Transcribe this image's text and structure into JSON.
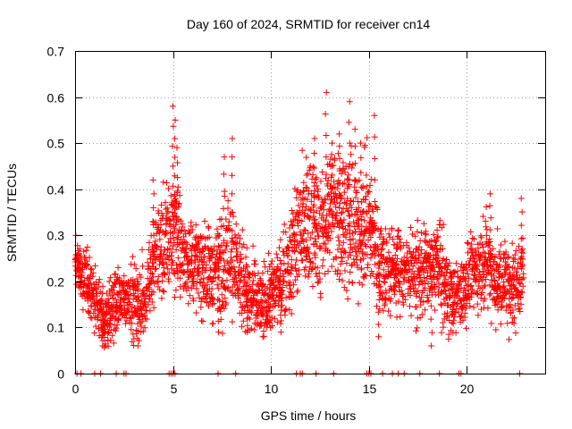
{
  "chart_data": {
    "type": "scatter",
    "title": "Day 160 of 2024, SRMTID for receiver cn14",
    "xlabel": "GPS time / hours",
    "ylabel": "SRMTID / TECUs",
    "xlim": [
      0,
      24
    ],
    "ylim": [
      0,
      0.7
    ],
    "x_ticks": [
      0,
      5,
      10,
      15,
      20
    ],
    "x_tick_labels": [
      "0",
      "5",
      "10",
      "15",
      "20"
    ],
    "y_ticks": [
      0,
      0.1,
      0.2,
      0.3,
      0.4,
      0.5,
      0.6,
      0.7
    ],
    "y_tick_labels": [
      "0",
      "0.1",
      "0.2",
      "0.3",
      "0.4",
      "0.5",
      "0.6",
      "0.7"
    ],
    "grid": "dotted",
    "marker": "+",
    "marker_color": "#ff0000",
    "envelope": {
      "x": [
        0,
        0.5,
        1.0,
        1.5,
        2.0,
        2.5,
        3.0,
        3.5,
        4.0,
        4.5,
        5.0,
        5.5,
        6.0,
        6.5,
        7.0,
        7.5,
        8.0,
        8.5,
        9.0,
        9.5,
        10.0,
        10.5,
        11.0,
        11.5,
        12.0,
        12.5,
        13.0,
        13.5,
        14.0,
        14.5,
        15.0,
        15.5,
        16.0,
        16.5,
        17.0,
        17.5,
        18.0,
        18.5,
        19.0,
        19.5,
        20.0,
        20.5,
        21.0,
        21.5,
        22.0,
        22.5,
        22.9
      ],
      "y": [
        0.24,
        0.2,
        0.16,
        0.12,
        0.15,
        0.17,
        0.16,
        0.15,
        0.24,
        0.28,
        0.32,
        0.26,
        0.24,
        0.22,
        0.22,
        0.24,
        0.27,
        0.2,
        0.16,
        0.15,
        0.17,
        0.2,
        0.26,
        0.31,
        0.33,
        0.3,
        0.35,
        0.36,
        0.32,
        0.3,
        0.34,
        0.24,
        0.22,
        0.23,
        0.22,
        0.21,
        0.23,
        0.24,
        0.18,
        0.17,
        0.2,
        0.22,
        0.25,
        0.21,
        0.2,
        0.19,
        0.21
      ],
      "spread": [
        0.05,
        0.05,
        0.05,
        0.05,
        0.05,
        0.05,
        0.06,
        0.07,
        0.07,
        0.09,
        0.1,
        0.08,
        0.07,
        0.07,
        0.08,
        0.09,
        0.1,
        0.08,
        0.07,
        0.06,
        0.06,
        0.07,
        0.09,
        0.11,
        0.11,
        0.1,
        0.11,
        0.12,
        0.11,
        0.1,
        0.1,
        0.08,
        0.07,
        0.07,
        0.07,
        0.07,
        0.07,
        0.07,
        0.07,
        0.06,
        0.06,
        0.07,
        0.08,
        0.07,
        0.07,
        0.07,
        0.06
      ]
    },
    "peaks": [
      {
        "x": 1.4,
        "y": 0.06
      },
      {
        "x": 3.2,
        "y": 0.06
      },
      {
        "x": 4.0,
        "y": 0.42
      },
      {
        "x": 5.0,
        "y": 0.58
      },
      {
        "x": 5.1,
        "y": 0.55
      },
      {
        "x": 5.2,
        "y": 0.49
      },
      {
        "x": 7.3,
        "y": 0.09
      },
      {
        "x": 7.6,
        "y": 0.47
      },
      {
        "x": 8.0,
        "y": 0.51
      },
      {
        "x": 8.8,
        "y": 0.09
      },
      {
        "x": 10.5,
        "y": 0.09
      },
      {
        "x": 12.2,
        "y": 0.51
      },
      {
        "x": 12.8,
        "y": 0.61
      },
      {
        "x": 13.1,
        "y": 0.5
      },
      {
        "x": 13.5,
        "y": 0.52
      },
      {
        "x": 14.0,
        "y": 0.59
      },
      {
        "x": 14.3,
        "y": 0.53
      },
      {
        "x": 14.6,
        "y": 0.5
      },
      {
        "x": 15.3,
        "y": 0.56
      },
      {
        "x": 15.5,
        "y": 0.08
      },
      {
        "x": 18.2,
        "y": 0.06
      },
      {
        "x": 21.2,
        "y": 0.39
      },
      {
        "x": 22.8,
        "y": 0.38
      }
    ],
    "zero_markers_x": [
      0.1,
      0.3,
      1.0,
      1.3,
      2.1,
      2.5,
      2.6,
      4.8,
      4.9,
      5.0,
      5.1,
      7.3,
      8.2,
      11.3,
      11.5,
      11.6,
      12.3,
      13.2,
      14.9,
      15.0,
      15.1,
      15.7,
      16.2,
      16.5,
      16.8,
      17.6,
      18.6,
      19.6,
      19.7,
      22.7
    ]
  }
}
